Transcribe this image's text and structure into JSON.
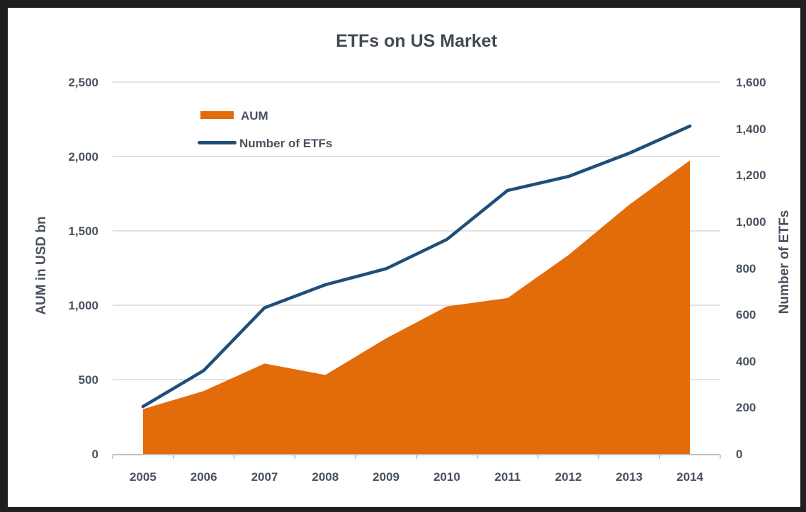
{
  "chart_data": {
    "type": "combo",
    "title": "ETFs on US Market",
    "categories": [
      "2005",
      "2006",
      "2007",
      "2008",
      "2009",
      "2010",
      "2011",
      "2012",
      "2013",
      "2014"
    ],
    "series": [
      {
        "name": "AUM",
        "type": "area",
        "axis": "left",
        "color": "#e26b0a",
        "values": [
          301,
          423,
          608,
          531,
          777,
          992,
          1048,
          1337,
          1675,
          1974
        ]
      },
      {
        "name": "Number of ETFs",
        "type": "line",
        "axis": "right",
        "color": "#1f4e79",
        "values": [
          204,
          359,
          629,
          728,
          797,
          923,
          1134,
          1194,
          1294,
          1411
        ]
      }
    ],
    "left_axis": {
      "title": "AUM in USD bn",
      "min": 0,
      "max": 2500,
      "step": 500,
      "tick_labels": [
        "0",
        "500",
        "1,000",
        "1,500",
        "2,000",
        "2,500"
      ]
    },
    "right_axis": {
      "title": "Number of ETFs",
      "min": 0,
      "max": 1600,
      "step": 200,
      "tick_labels": [
        "0",
        "200",
        "400",
        "600",
        "800",
        "1,000",
        "1,200",
        "1,400",
        "1,600"
      ]
    },
    "legend": {
      "position": "top-left-inside",
      "entries": [
        "AUM",
        "Number of ETFs"
      ]
    },
    "grid": {
      "show_horizontal": true,
      "gridline_color": "#d9d9d9",
      "axis_line_color": "#bfbfbf"
    },
    "text_color": "#49525e",
    "frame_color": "#1f1f1f",
    "plot_background": "#ffffff"
  }
}
